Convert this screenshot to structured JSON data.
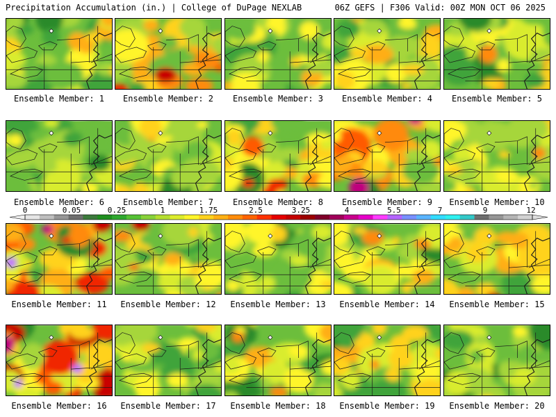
{
  "header": {
    "left": "Precipitation Accumulation (in.) | College of DuPage NEXLAB",
    "right": "06Z GEFS | F306 Valid: 00Z MON OCT 06 2025"
  },
  "caption_prefix": "Ensemble Member:",
  "members": [
    {
      "label": "Ensemble Member: 1",
      "wetness": 0.9
    },
    {
      "label": "Ensemble Member: 2",
      "wetness": 1.6
    },
    {
      "label": "Ensemble Member: 3",
      "wetness": 0.8
    },
    {
      "label": "Ensemble Member: 4",
      "wetness": 1.0
    },
    {
      "label": "Ensemble Member: 5",
      "wetness": 0.9
    },
    {
      "label": "Ensemble Member: 6",
      "wetness": 0.5
    },
    {
      "label": "Ensemble Member: 7",
      "wetness": 1.0
    },
    {
      "label": "Ensemble Member: 8",
      "wetness": 1.5
    },
    {
      "label": "Ensemble Member: 9",
      "wetness": 1.8
    },
    {
      "label": "Ensemble Member: 10",
      "wetness": 0.9
    },
    {
      "label": "Ensemble Member: 11",
      "wetness": 1.9
    },
    {
      "label": "Ensemble Member: 12",
      "wetness": 1.2
    },
    {
      "label": "Ensemble Member: 13",
      "wetness": 0.8
    },
    {
      "label": "Ensemble Member: 14",
      "wetness": 1.1
    },
    {
      "label": "Ensemble Member: 15",
      "wetness": 1.3
    },
    {
      "label": "Ensemble Member: 16",
      "wetness": 2.2
    },
    {
      "label": "Ensemble Member: 17",
      "wetness": 0.8
    },
    {
      "label": "Ensemble Member: 18",
      "wetness": 0.9
    },
    {
      "label": "Ensemble Member: 19",
      "wetness": 1.0
    },
    {
      "label": "Ensemble Member: 20",
      "wetness": 0.6
    }
  ],
  "colorbar": {
    "ticks": [
      "0",
      "0.05",
      "0.25",
      "1",
      "1.75",
      "2.5",
      "3.25",
      "4",
      "5.5",
      "7",
      "9",
      "12"
    ],
    "colors": [
      "#e6e6e6",
      "#bebebe",
      "#969696",
      "#6e6e6e",
      "#3c7a3c",
      "#1f8f1f",
      "#2ea82e",
      "#55c135",
      "#88d23a",
      "#b5de30",
      "#dcec2c",
      "#fff52a",
      "#ffd21e",
      "#ffb014",
      "#ff8c0a",
      "#ff6400",
      "#ff3200",
      "#e60000",
      "#c40000",
      "#9c0000",
      "#80002a",
      "#a0005a",
      "#c8008c",
      "#e600c8",
      "#ff3cff",
      "#b464ff",
      "#7890ff",
      "#5ab4ff",
      "#32dcff",
      "#2ef0f0",
      "#32c8c8",
      "#6e6e6e",
      "#969696",
      "#b4b4b4",
      "#d2d2d2"
    ]
  },
  "precip_levels": [
    "#2a8a2a",
    "#3fa43a",
    "#6cbe3c",
    "#a6d63a",
    "#d9ec2d",
    "#fff52a",
    "#ffd21e",
    "#ffae14",
    "#ff8a0a",
    "#ff5a00",
    "#f02800",
    "#c80000",
    "#c0007e",
    "#e040ff",
    "#c070ff"
  ]
}
